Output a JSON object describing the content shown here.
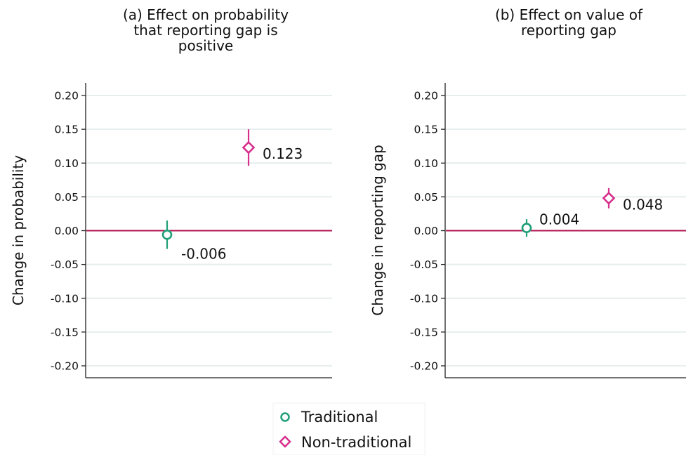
{
  "chart_data": [
    {
      "type": "scatter",
      "title_lines": [
        "(a) Effect on probability",
        "that reporting gap is",
        "positive"
      ],
      "ylabel": "Change in probability",
      "xlabel": "",
      "ylim": [
        -0.2,
        0.2
      ],
      "yticks": [
        0.2,
        0.15,
        0.1,
        0.05,
        0.0,
        -0.05,
        -0.1,
        -0.15,
        -0.2
      ],
      "ytick_labels": [
        "0.20",
        "0.15",
        "0.10",
        "0.05",
        "0.00",
        "-0.05",
        "-0.10",
        "-0.15",
        "-0.20"
      ],
      "grid": true,
      "reference_line": 0,
      "series": [
        {
          "name": "Traditional",
          "marker": "circle",
          "color": "#1f9e78",
          "value": -0.006,
          "ci": [
            -0.027,
            0.015
          ],
          "label": "-0.006"
        },
        {
          "name": "Non-traditional",
          "marker": "diamond",
          "color": "#d62f8c",
          "value": 0.123,
          "ci": [
            0.096,
            0.15
          ],
          "label": "0.123"
        }
      ]
    },
    {
      "type": "scatter",
      "title_lines": [
        "(b) Effect on value of",
        "reporting gap"
      ],
      "ylabel": "Change in reporting gap",
      "xlabel": "",
      "ylim": [
        -0.2,
        0.2
      ],
      "yticks": [
        0.2,
        0.15,
        0.1,
        0.05,
        0.0,
        -0.05,
        -0.1,
        -0.15,
        -0.2
      ],
      "ytick_labels": [
        "0.20",
        "0.15",
        "0.10",
        "0.05",
        "0.00",
        "-0.05",
        "-0.10",
        "-0.15",
        "-0.20"
      ],
      "grid": true,
      "reference_line": 0,
      "series": [
        {
          "name": "Traditional",
          "marker": "circle",
          "color": "#1f9e78",
          "value": 0.004,
          "ci": [
            -0.009,
            0.017
          ],
          "label": "0.004"
        },
        {
          "name": "Non-traditional",
          "marker": "diamond",
          "color": "#d62f8c",
          "value": 0.048,
          "ci": [
            0.033,
            0.063
          ],
          "label": "0.048"
        }
      ]
    }
  ],
  "legend": {
    "position": "bottom-center",
    "items": [
      {
        "label": "Traditional",
        "marker": "circle",
        "color": "#1f9e78"
      },
      {
        "label": "Non-traditional",
        "marker": "diamond",
        "color": "#d62f8c"
      }
    ]
  },
  "colors": {
    "zero_line": "#b0124e",
    "grid": "#e6eeee",
    "axis": "#222222"
  }
}
